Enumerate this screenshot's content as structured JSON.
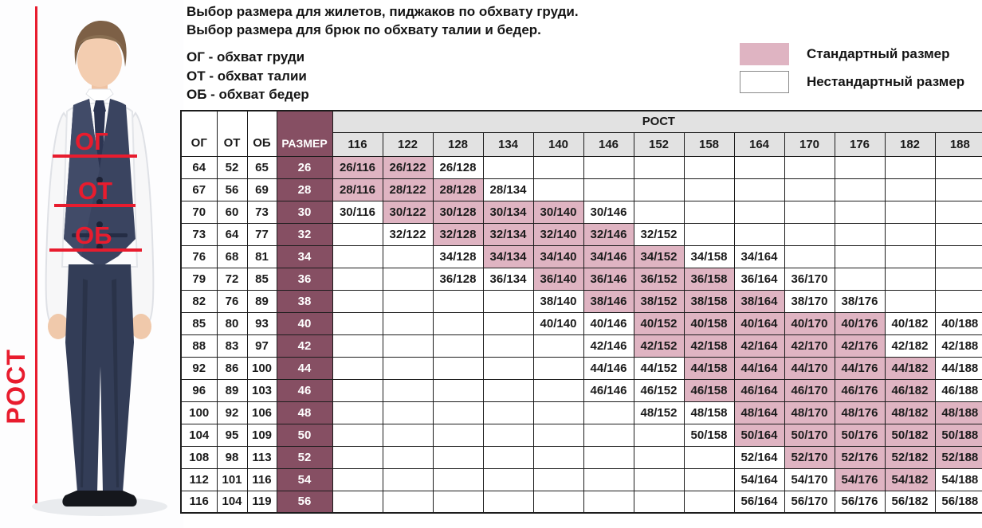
{
  "headline_lines": [
    "Выбор размера для жилетов, пиджаков по обхвату груди.",
    "Выбор размера для брюк по обхвату талии и бедер."
  ],
  "abbreviations": [
    "ОГ - обхват груди",
    "ОТ - обхват талии",
    "ОБ - обхват бедер"
  ],
  "legend": {
    "standard": "Стандартный размер",
    "nonstandard": "Нестандартный размер"
  },
  "figure": {
    "chest_label": "ОГ",
    "waist_label": "ОТ",
    "hips_label": "ОБ",
    "height_label": "РОСТ"
  },
  "colors": {
    "standard_pink": "#dfb4c2",
    "size_maroon": "#864f63",
    "header_gray": "#e2e2e2",
    "annotation_red": "#e81c2e"
  },
  "table": {
    "col_headers": [
      "ОГ",
      "ОТ",
      "ОБ",
      "РАЗМЕР"
    ],
    "rost_header": "РОСТ",
    "heights": [
      116,
      122,
      128,
      134,
      140,
      146,
      152,
      158,
      164,
      170,
      176,
      182,
      188
    ],
    "rows": [
      {
        "og": "64",
        "ot": "52",
        "ob": "65",
        "size": "26",
        "cells": [
          {
            "v": "26/116",
            "std": true
          },
          {
            "v": "26/122",
            "std": true
          },
          {
            "v": "26/128",
            "std": false
          },
          null,
          null,
          null,
          null,
          null,
          null,
          null,
          null,
          null,
          null
        ]
      },
      {
        "og": "67",
        "ot": "56",
        "ob": "69",
        "size": "28",
        "cells": [
          {
            "v": "28/116",
            "std": true
          },
          {
            "v": "28/122",
            "std": true
          },
          {
            "v": "28/128",
            "std": true
          },
          {
            "v": "28/134",
            "std": false
          },
          null,
          null,
          null,
          null,
          null,
          null,
          null,
          null,
          null
        ]
      },
      {
        "og": "70",
        "ot": "60",
        "ob": "73",
        "size": "30",
        "cells": [
          {
            "v": "30/116",
            "std": false
          },
          {
            "v": "30/122",
            "std": true
          },
          {
            "v": "30/128",
            "std": true
          },
          {
            "v": "30/134",
            "std": true
          },
          {
            "v": "30/140",
            "std": true
          },
          {
            "v": "30/146",
            "std": false
          },
          null,
          null,
          null,
          null,
          null,
          null,
          null
        ]
      },
      {
        "og": "73",
        "ot": "64",
        "ob": "77",
        "size": "32",
        "cells": [
          null,
          {
            "v": "32/122",
            "std": false
          },
          {
            "v": "32/128",
            "std": true
          },
          {
            "v": "32/134",
            "std": true
          },
          {
            "v": "32/140",
            "std": true
          },
          {
            "v": "32/146",
            "std": true
          },
          {
            "v": "32/152",
            "std": false
          },
          null,
          null,
          null,
          null,
          null,
          null
        ]
      },
      {
        "og": "76",
        "ot": "68",
        "ob": "81",
        "size": "34",
        "cells": [
          null,
          null,
          {
            "v": "34/128",
            "std": false
          },
          {
            "v": "34/134",
            "std": true
          },
          {
            "v": "34/140",
            "std": true
          },
          {
            "v": "34/146",
            "std": true
          },
          {
            "v": "34/152",
            "std": true
          },
          {
            "v": "34/158",
            "std": false
          },
          {
            "v": "34/164",
            "std": false
          },
          null,
          null,
          null,
          null
        ]
      },
      {
        "og": "79",
        "ot": "72",
        "ob": "85",
        "size": "36",
        "cells": [
          null,
          null,
          {
            "v": "36/128",
            "std": false
          },
          {
            "v": "36/134",
            "std": false
          },
          {
            "v": "36/140",
            "std": true
          },
          {
            "v": "36/146",
            "std": true
          },
          {
            "v": "36/152",
            "std": true
          },
          {
            "v": "36/158",
            "std": true
          },
          {
            "v": "36/164",
            "std": false
          },
          {
            "v": "36/170",
            "std": false
          },
          null,
          null,
          null
        ]
      },
      {
        "og": "82",
        "ot": "76",
        "ob": "89",
        "size": "38",
        "cells": [
          null,
          null,
          null,
          null,
          {
            "v": "38/140",
            "std": false
          },
          {
            "v": "38/146",
            "std": true
          },
          {
            "v": "38/152",
            "std": true
          },
          {
            "v": "38/158",
            "std": true
          },
          {
            "v": "38/164",
            "std": true
          },
          {
            "v": "38/170",
            "std": false
          },
          {
            "v": "38/176",
            "std": false
          },
          null,
          null
        ]
      },
      {
        "og": "85",
        "ot": "80",
        "ob": "93",
        "size": "40",
        "cells": [
          null,
          null,
          null,
          null,
          {
            "v": "40/140",
            "std": false
          },
          {
            "v": "40/146",
            "std": false
          },
          {
            "v": "40/152",
            "std": true
          },
          {
            "v": "40/158",
            "std": true
          },
          {
            "v": "40/164",
            "std": true
          },
          {
            "v": "40/170",
            "std": true
          },
          {
            "v": "40/176",
            "std": true
          },
          {
            "v": "40/182",
            "std": false
          },
          {
            "v": "40/188",
            "std": false
          }
        ]
      },
      {
        "og": "88",
        "ot": "83",
        "ob": "97",
        "size": "42",
        "cells": [
          null,
          null,
          null,
          null,
          null,
          {
            "v": "42/146",
            "std": false
          },
          {
            "v": "42/152",
            "std": true
          },
          {
            "v": "42/158",
            "std": true
          },
          {
            "v": "42/164",
            "std": true
          },
          {
            "v": "42/170",
            "std": true
          },
          {
            "v": "42/176",
            "std": true
          },
          {
            "v": "42/182",
            "std": false
          },
          {
            "v": "42/188",
            "std": false
          }
        ]
      },
      {
        "og": "92",
        "ot": "86",
        "ob": "100",
        "size": "44",
        "cells": [
          null,
          null,
          null,
          null,
          null,
          {
            "v": "44/146",
            "std": false
          },
          {
            "v": "44/152",
            "std": false
          },
          {
            "v": "44/158",
            "std": true
          },
          {
            "v": "44/164",
            "std": true
          },
          {
            "v": "44/170",
            "std": true
          },
          {
            "v": "44/176",
            "std": true
          },
          {
            "v": "44/182",
            "std": true
          },
          {
            "v": "44/188",
            "std": false
          }
        ]
      },
      {
        "og": "96",
        "ot": "89",
        "ob": "103",
        "size": "46",
        "cells": [
          null,
          null,
          null,
          null,
          null,
          {
            "v": "46/146",
            "std": false
          },
          {
            "v": "46/152",
            "std": false
          },
          {
            "v": "46/158",
            "std": true
          },
          {
            "v": "46/164",
            "std": true
          },
          {
            "v": "46/170",
            "std": true
          },
          {
            "v": "46/176",
            "std": true
          },
          {
            "v": "46/182",
            "std": true
          },
          {
            "v": "46/188",
            "std": false
          }
        ]
      },
      {
        "og": "100",
        "ot": "92",
        "ob": "106",
        "size": "48",
        "cells": [
          null,
          null,
          null,
          null,
          null,
          null,
          {
            "v": "48/152",
            "std": false
          },
          {
            "v": "48/158",
            "std": false
          },
          {
            "v": "48/164",
            "std": true
          },
          {
            "v": "48/170",
            "std": true
          },
          {
            "v": "48/176",
            "std": true
          },
          {
            "v": "48/182",
            "std": true
          },
          {
            "v": "48/188",
            "std": true
          }
        ]
      },
      {
        "og": "104",
        "ot": "95",
        "ob": "109",
        "size": "50",
        "cells": [
          null,
          null,
          null,
          null,
          null,
          null,
          null,
          {
            "v": "50/158",
            "std": false
          },
          {
            "v": "50/164",
            "std": true
          },
          {
            "v": "50/170",
            "std": true
          },
          {
            "v": "50/176",
            "std": true
          },
          {
            "v": "50/182",
            "std": true
          },
          {
            "v": "50/188",
            "std": true
          }
        ]
      },
      {
        "og": "108",
        "ot": "98",
        "ob": "113",
        "size": "52",
        "cells": [
          null,
          null,
          null,
          null,
          null,
          null,
          null,
          null,
          {
            "v": "52/164",
            "std": false
          },
          {
            "v": "52/170",
            "std": true
          },
          {
            "v": "52/176",
            "std": true
          },
          {
            "v": "52/182",
            "std": true
          },
          {
            "v": "52/188",
            "std": true
          }
        ]
      },
      {
        "og": "112",
        "ot": "101",
        "ob": "116",
        "size": "54",
        "cells": [
          null,
          null,
          null,
          null,
          null,
          null,
          null,
          null,
          {
            "v": "54/164",
            "std": false
          },
          {
            "v": "54/170",
            "std": false
          },
          {
            "v": "54/176",
            "std": true
          },
          {
            "v": "54/182",
            "std": true
          },
          {
            "v": "54/188",
            "std": false
          }
        ]
      },
      {
        "og": "116",
        "ot": "104",
        "ob": "119",
        "size": "56",
        "cells": [
          null,
          null,
          null,
          null,
          null,
          null,
          null,
          null,
          {
            "v": "56/164",
            "std": false
          },
          {
            "v": "56/170",
            "std": false
          },
          {
            "v": "56/176",
            "std": false
          },
          {
            "v": "56/182",
            "std": false
          },
          {
            "v": "56/188",
            "std": false
          }
        ]
      }
    ]
  }
}
